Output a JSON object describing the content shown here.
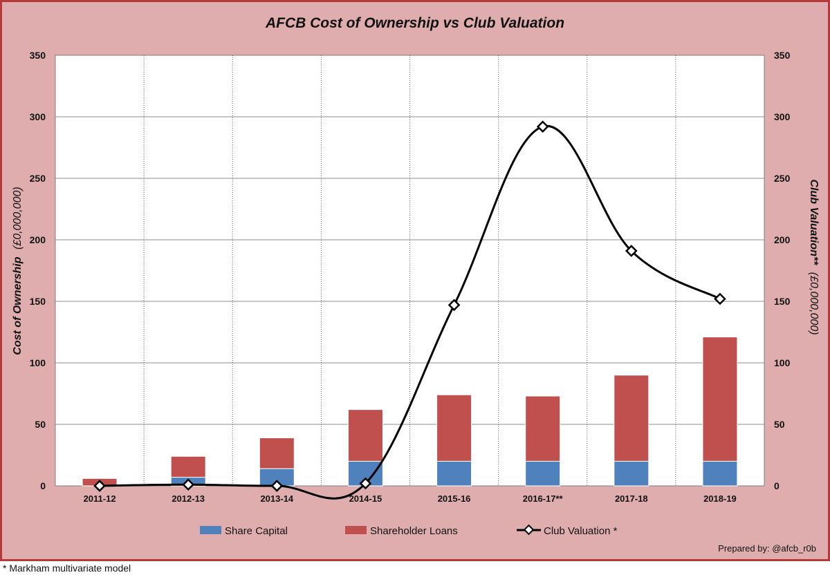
{
  "chart_data": {
    "type": "bar",
    "stacked": true,
    "title": "AFCB Cost of Ownership vs Club Valuation",
    "categories": [
      "2011-12",
      "2012-13",
      "2013-14",
      "2014-15",
      "2015-16",
      "2016-17**",
      "2017-18",
      "2018-19"
    ],
    "series": [
      {
        "name": "Share Capital",
        "type": "bar",
        "axis": "left",
        "color": "#4f81bd",
        "values": [
          0,
          7,
          14,
          20,
          20,
          20,
          20,
          20
        ]
      },
      {
        "name": "Shareholder Loans",
        "type": "bar",
        "axis": "left",
        "color": "#c0504d",
        "values": [
          6,
          17,
          25,
          42,
          54,
          53,
          70,
          101
        ]
      },
      {
        "name": "Club Valuation *",
        "type": "line",
        "axis": "right",
        "color": "#000000",
        "smooth": true,
        "values": [
          0,
          1,
          0,
          2,
          147,
          292,
          191,
          152
        ]
      }
    ],
    "y_left": {
      "label": "Cost of Ownership",
      "unit": "(£0,000,000)",
      "ylim": [
        0,
        350
      ],
      "ticks": [
        0,
        50,
        100,
        150,
        200,
        250,
        300,
        350
      ]
    },
    "y_right": {
      "label": "Club Valuation**",
      "unit": "(£0,000,000)",
      "ylim": [
        0,
        350
      ],
      "ticks": [
        0,
        50,
        100,
        150,
        200,
        250,
        300,
        350
      ]
    },
    "grid": {
      "horizontal": true,
      "vertical": "dotted"
    },
    "legend_position": "bottom"
  },
  "credit": "Prepared by: @afcb_r0b",
  "footnote": "* Markham multivariate model",
  "colors": {
    "background": "#dfadad",
    "border": "#b43a3a",
    "plot": "#ffffff",
    "share_capital": "#4f81bd",
    "shareholder_loans": "#c0504d",
    "line": "#000000"
  }
}
